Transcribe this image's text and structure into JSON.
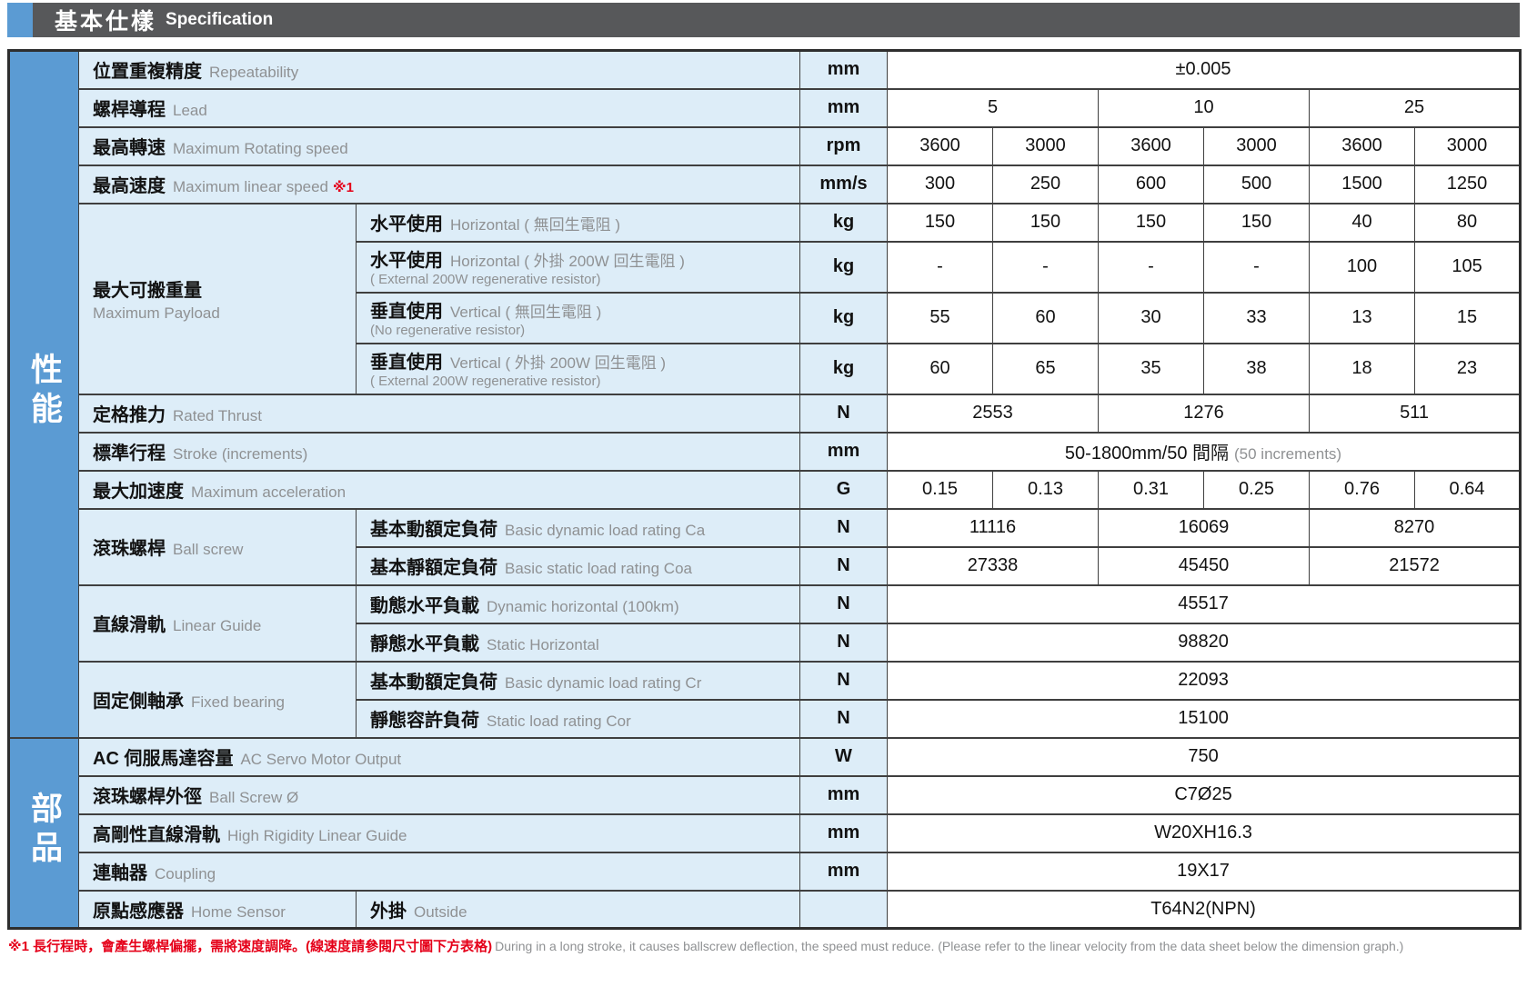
{
  "header": {
    "title_zh": "基本仕樣",
    "title_en": "Specification"
  },
  "colors": {
    "accent_blue": "#5b9bd3",
    "header_gray": "#57585a",
    "label_bg": "#ddedf8",
    "value_bg": "#ffffff",
    "border": "#3f3f3f",
    "text_black": "#121212",
    "text_gray": "#8f9193",
    "text_red": "#e50019"
  },
  "table": {
    "rows": [
      {
        "cells": [
          {
            "type": "band",
            "rowspan": 17,
            "text": "性能"
          },
          {
            "type": "label",
            "colspan": 2,
            "zh": "位置重複精度",
            "en": "Repeatability"
          },
          {
            "type": "unit",
            "text": "mm"
          },
          {
            "type": "value",
            "colspan": 6,
            "text": "±0.005"
          }
        ]
      },
      {
        "cells": [
          {
            "type": "label",
            "colspan": 2,
            "zh": "螺桿導程",
            "en": "Lead"
          },
          {
            "type": "unit",
            "text": "mm"
          },
          {
            "type": "value",
            "colspan": 2,
            "text": "5"
          },
          {
            "type": "value",
            "colspan": 2,
            "text": "10"
          },
          {
            "type": "value",
            "colspan": 2,
            "text": "25"
          }
        ]
      },
      {
        "cells": [
          {
            "type": "label",
            "colspan": 2,
            "zh": "最高轉速",
            "en": "Maximum Rotating speed"
          },
          {
            "type": "unit",
            "text": "rpm"
          },
          {
            "type": "value",
            "text": "3600"
          },
          {
            "type": "value",
            "text": "3000"
          },
          {
            "type": "value",
            "text": "3600"
          },
          {
            "type": "value",
            "text": "3000"
          },
          {
            "type": "value",
            "text": "3600"
          },
          {
            "type": "value",
            "text": "3000"
          }
        ]
      },
      {
        "cells": [
          {
            "type": "label",
            "colspan": 2,
            "zh": "最高速度",
            "en": "Maximum linear speed",
            "red": "※1"
          },
          {
            "type": "unit",
            "text": "mm/s"
          },
          {
            "type": "value",
            "text": "300"
          },
          {
            "type": "value",
            "text": "250"
          },
          {
            "type": "value",
            "text": "600"
          },
          {
            "type": "value",
            "text": "500"
          },
          {
            "type": "value",
            "text": "1500"
          },
          {
            "type": "value",
            "text": "1250"
          }
        ]
      },
      {
        "cells": [
          {
            "type": "label",
            "rowspan": 4,
            "zh": "最大可搬重量",
            "en2": "Maximum Payload"
          },
          {
            "type": "sublabel",
            "zh": "水平使用",
            "en": "Horizontal ( 無回生電阻 )"
          },
          {
            "type": "unit",
            "text": "kg"
          },
          {
            "type": "value",
            "text": "150"
          },
          {
            "type": "value",
            "text": "150"
          },
          {
            "type": "value",
            "text": "150"
          },
          {
            "type": "value",
            "text": "150"
          },
          {
            "type": "value",
            "text": "40"
          },
          {
            "type": "value",
            "text": "80"
          }
        ]
      },
      {
        "tall": true,
        "cells": [
          {
            "type": "sublabel",
            "zh": "水平使用",
            "en": "Horizontal ( 外掛 200W 回生電阻 )",
            "en2": "( External 200W regenerative resistor)"
          },
          {
            "type": "unit",
            "text": "kg"
          },
          {
            "type": "value",
            "text": "-"
          },
          {
            "type": "value",
            "text": "-"
          },
          {
            "type": "value",
            "text": "-"
          },
          {
            "type": "value",
            "text": "-"
          },
          {
            "type": "value",
            "text": "100"
          },
          {
            "type": "value",
            "text": "105"
          }
        ]
      },
      {
        "tall": true,
        "cells": [
          {
            "type": "sublabel",
            "zh": "垂直使用",
            "en": "Vertical ( 無回生電阻 )",
            "en2": "(No regenerative resistor)"
          },
          {
            "type": "unit",
            "text": "kg"
          },
          {
            "type": "value",
            "text": "55"
          },
          {
            "type": "value",
            "text": "60"
          },
          {
            "type": "value",
            "text": "30"
          },
          {
            "type": "value",
            "text": "33"
          },
          {
            "type": "value",
            "text": "13"
          },
          {
            "type": "value",
            "text": "15"
          }
        ]
      },
      {
        "tall": true,
        "cells": [
          {
            "type": "sublabel",
            "zh": "垂直使用",
            "en": "Vertical ( 外掛 200W 回生電阻 )",
            "en2": "( External 200W regenerative resistor)"
          },
          {
            "type": "unit",
            "text": "kg"
          },
          {
            "type": "value",
            "text": "60"
          },
          {
            "type": "value",
            "text": "65"
          },
          {
            "type": "value",
            "text": "35"
          },
          {
            "type": "value",
            "text": "38"
          },
          {
            "type": "value",
            "text": "18"
          },
          {
            "type": "value",
            "text": "23"
          }
        ]
      },
      {
        "cells": [
          {
            "type": "label",
            "colspan": 2,
            "zh": "定格推力",
            "en": "Rated Thrust"
          },
          {
            "type": "unit",
            "text": "N"
          },
          {
            "type": "value",
            "colspan": 2,
            "text": "2553"
          },
          {
            "type": "value",
            "colspan": 2,
            "text": "1276"
          },
          {
            "type": "value",
            "colspan": 2,
            "text": "511"
          }
        ]
      },
      {
        "cells": [
          {
            "type": "label",
            "colspan": 2,
            "zh": "標準行程",
            "en": "Stroke (increments)"
          },
          {
            "type": "unit",
            "text": "mm"
          },
          {
            "type": "value",
            "colspan": 6,
            "text": "50-1800mm/50 間隔",
            "gray": "(50 increments)"
          }
        ]
      },
      {
        "cells": [
          {
            "type": "label",
            "colspan": 2,
            "zh": "最大加速度",
            "en": "Maximum acceleration"
          },
          {
            "type": "unit",
            "text": "G"
          },
          {
            "type": "value",
            "text": "0.15"
          },
          {
            "type": "value",
            "text": "0.13"
          },
          {
            "type": "value",
            "text": "0.31"
          },
          {
            "type": "value",
            "text": "0.25"
          },
          {
            "type": "value",
            "text": "0.76"
          },
          {
            "type": "value",
            "text": "0.64"
          }
        ]
      },
      {
        "cells": [
          {
            "type": "label",
            "rowspan": 2,
            "zh": "滾珠螺桿",
            "en": "Ball screw"
          },
          {
            "type": "sublabel",
            "zh": "基本動額定負荷",
            "en": "Basic dynamic load rating Ca"
          },
          {
            "type": "unit",
            "text": "N"
          },
          {
            "type": "value",
            "colspan": 2,
            "text": "11116"
          },
          {
            "type": "value",
            "colspan": 2,
            "text": "16069"
          },
          {
            "type": "value",
            "colspan": 2,
            "text": "8270"
          }
        ]
      },
      {
        "cells": [
          {
            "type": "sublabel",
            "zh": "基本靜額定負荷",
            "en": "Basic static load rating Coa"
          },
          {
            "type": "unit",
            "text": "N"
          },
          {
            "type": "value",
            "colspan": 2,
            "text": "27338"
          },
          {
            "type": "value",
            "colspan": 2,
            "text": "45450"
          },
          {
            "type": "value",
            "colspan": 2,
            "text": "21572"
          }
        ]
      },
      {
        "cells": [
          {
            "type": "label",
            "rowspan": 2,
            "zh": "直線滑軌",
            "en": "Linear Guide"
          },
          {
            "type": "sublabel",
            "zh": "動態水平負載",
            "en": "Dynamic horizontal (100km)"
          },
          {
            "type": "unit",
            "text": "N"
          },
          {
            "type": "value",
            "colspan": 6,
            "text": "45517"
          }
        ]
      },
      {
        "cells": [
          {
            "type": "sublabel",
            "zh": "靜態水平負載",
            "en": "Static Horizontal"
          },
          {
            "type": "unit",
            "text": "N"
          },
          {
            "type": "value",
            "colspan": 6,
            "text": "98820"
          }
        ]
      },
      {
        "cells": [
          {
            "type": "label",
            "rowspan": 2,
            "zh": "固定側軸承",
            "en": "Fixed bearing"
          },
          {
            "type": "sublabel",
            "zh": "基本動額定負荷",
            "en": "Basic dynamic load rating Cr"
          },
          {
            "type": "unit",
            "text": "N"
          },
          {
            "type": "value",
            "colspan": 6,
            "text": "22093"
          }
        ]
      },
      {
        "cells": [
          {
            "type": "sublabel",
            "zh": "靜態容許負荷",
            "en": "Static load rating Cor"
          },
          {
            "type": "unit",
            "text": "N"
          },
          {
            "type": "value",
            "colspan": 6,
            "text": "15100"
          }
        ]
      },
      {
        "cells": [
          {
            "type": "band",
            "rowspan": 5,
            "text": "部品"
          },
          {
            "type": "label",
            "colspan": 2,
            "zh": "AC 伺服馬達容量",
            "en": "AC Servo Motor Output"
          },
          {
            "type": "unit",
            "text": "W"
          },
          {
            "type": "value",
            "colspan": 6,
            "text": "750"
          }
        ]
      },
      {
        "cells": [
          {
            "type": "label",
            "colspan": 2,
            "zh": "滾珠螺桿外徑",
            "en": "Ball Screw Ø"
          },
          {
            "type": "unit",
            "text": "mm"
          },
          {
            "type": "value",
            "colspan": 6,
            "text": "C7Ø25"
          }
        ]
      },
      {
        "cells": [
          {
            "type": "label",
            "colspan": 2,
            "zh": "高剛性直線滑軌",
            "en": "High Rigidity Linear Guide"
          },
          {
            "type": "unit",
            "text": "mm"
          },
          {
            "type": "value",
            "colspan": 6,
            "text": "W20XH16.3"
          }
        ]
      },
      {
        "cells": [
          {
            "type": "label",
            "colspan": 2,
            "zh": "連軸器",
            "en": "Coupling"
          },
          {
            "type": "unit",
            "text": "mm"
          },
          {
            "type": "value",
            "colspan": 6,
            "text": "19X17"
          }
        ]
      },
      {
        "cells": [
          {
            "type": "label",
            "zh": "原點感應器",
            "en": "Home Sensor"
          },
          {
            "type": "sublabel",
            "zh": "外掛",
            "en": "Outside"
          },
          {
            "type": "unit",
            "text": ""
          },
          {
            "type": "value",
            "colspan": 6,
            "text": "T64N2(NPN)"
          }
        ]
      }
    ]
  },
  "footnote": {
    "red_text": "※1 長行程時，會產生螺桿偏擺，需將速度調降。(線速度請參閱尺寸圖下方表格)",
    "gray_text": "During in a long stroke, it causes ballscrew deflection, the speed must reduce. (Please refer to the linear velocity from the data sheet below the dimension graph.)"
  }
}
